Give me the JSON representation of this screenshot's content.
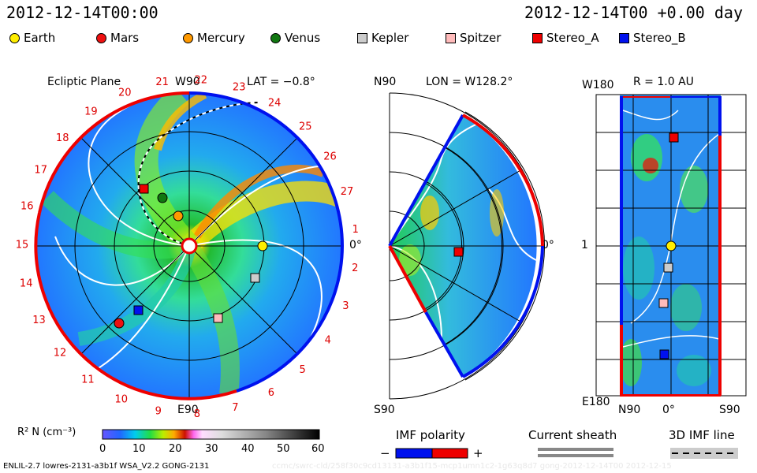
{
  "header": {
    "timestamp_left": "2012-12-14T00:00",
    "timestamp_right": "2012-12-14T00 +0.00 day"
  },
  "legend": [
    {
      "label": "Earth",
      "color": "#ffee00",
      "shape": "circle"
    },
    {
      "label": "Mars",
      "color": "#ee1111",
      "shape": "circle"
    },
    {
      "label": "Mercury",
      "color": "#ff9900",
      "shape": "circle"
    },
    {
      "label": "Venus",
      "color": "#117711",
      "shape": "circle"
    },
    {
      "label": "Kepler",
      "color": "#cccccc",
      "shape": "square"
    },
    {
      "label": "Spitzer",
      "color": "#ffbbbb",
      "shape": "square"
    },
    {
      "label": "Stereo_A",
      "color": "#ee0000",
      "shape": "square"
    },
    {
      "label": "Stereo_B",
      "color": "#0011ee",
      "shape": "square"
    }
  ],
  "ecliptic": {
    "title": "Ecliptic Plane",
    "top_label": "W90",
    "lat_label": "LAT = −0.8°",
    "bottom_label": "E90",
    "right_label": "0°",
    "carrington_numbers": [
      "1",
      "2",
      "3",
      "4",
      "5",
      "6",
      "7",
      "8",
      "9",
      "10",
      "11",
      "12",
      "13",
      "14",
      "15",
      "16",
      "17",
      "18",
      "19",
      "20",
      "21",
      "22",
      "23",
      "24",
      "25",
      "26",
      "27"
    ]
  },
  "meridional": {
    "top_left": "N90",
    "lon_label": "LON = W128.2°",
    "right_label": "0°",
    "bottom_left": "S90"
  },
  "latlon": {
    "top_left": "W180",
    "r_label": "R = 1.0 AU",
    "left_mid": "1",
    "bottom_left": "E180",
    "bottom_n": "N90",
    "bottom_zero": "0°",
    "bottom_s": "S90"
  },
  "colorbar": {
    "label": "R² N (cm⁻³)",
    "ticks": [
      "0",
      "10",
      "20",
      "30",
      "40",
      "50",
      "60"
    ]
  },
  "imf": {
    "title": "IMF polarity",
    "minus": "−",
    "plus": "+",
    "neg_color": "#0011ee",
    "pos_color": "#ee0000"
  },
  "sheath": {
    "title": "Current sheath"
  },
  "imf3d": {
    "title": "3D IMF line"
  },
  "footer": {
    "left": "ENLIL-2.7 lowres-2131-a3b1f WSA_V2.2 GONG-2131",
    "right": "ccmc/swrc-cld/258f30c9cd13131-a3b1f15-mcp1umn1c2-1g63q8d7 gong-2012-12-14T00   2012-12-15"
  }
}
